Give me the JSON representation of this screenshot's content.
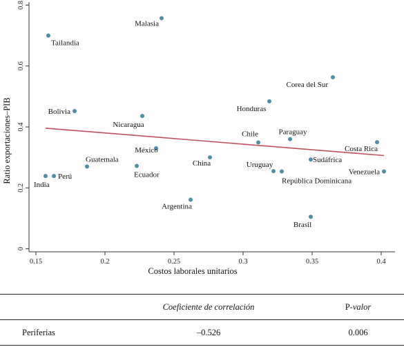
{
  "chart_data": {
    "type": "scatter",
    "xlabel": "Costos laborales unitarios",
    "ylabel": "Ratio exportaciones–PIB",
    "xlim": [
      0.145,
      0.41
    ],
    "ylim": [
      -0.01,
      0.81
    ],
    "xticks": [
      0.15,
      0.2,
      0.25,
      0.3,
      0.35,
      0.4
    ],
    "xtick_labels": [
      "0.15",
      "0.2",
      "0.25",
      "0.3",
      "0.35",
      "0.4"
    ],
    "yticks": [
      0,
      0.2,
      0.4,
      0.6,
      0.8
    ],
    "ytick_labels": [
      "0",
      "0.2",
      "0.4",
      "0.6",
      "0.8"
    ],
    "grid": false,
    "point_color": "#4f8fa6",
    "fit_color": "#c0505a",
    "points": [
      {
        "label": "Malasia",
        "x": 0.241,
        "y": 0.757
      },
      {
        "label": "Tailandia",
        "x": 0.159,
        "y": 0.7
      },
      {
        "label": "Corea del Sur",
        "x": 0.365,
        "y": 0.563
      },
      {
        "label": "Honduras",
        "x": 0.319,
        "y": 0.484
      },
      {
        "label": "Bolivia",
        "x": 0.178,
        "y": 0.452
      },
      {
        "label": "Nicaragua",
        "x": 0.227,
        "y": 0.436
      },
      {
        "label": "Chile",
        "x": 0.311,
        "y": 0.349
      },
      {
        "label": "Paraguay",
        "x": 0.334,
        "y": 0.36
      },
      {
        "label": "Costa Rica",
        "x": 0.397,
        "y": 0.35
      },
      {
        "label": "México",
        "x": 0.237,
        "y": 0.33
      },
      {
        "label": "China",
        "x": 0.276,
        "y": 0.3
      },
      {
        "label": "Sudáfrica",
        "x": 0.349,
        "y": 0.293
      },
      {
        "label": "Guatemala",
        "x": 0.187,
        "y": 0.27
      },
      {
        "label": "Ecuador",
        "x": 0.223,
        "y": 0.272
      },
      {
        "label": "Uruguay",
        "x": 0.322,
        "y": 0.255
      },
      {
        "label": "República Dominicana",
        "x": 0.328,
        "y": 0.254
      },
      {
        "label": "Venezuela",
        "x": 0.402,
        "y": 0.254
      },
      {
        "label": "India",
        "x": 0.157,
        "y": 0.239
      },
      {
        "label": "Perú",
        "x": 0.163,
        "y": 0.239
      },
      {
        "label": "Argentina",
        "x": 0.262,
        "y": 0.161
      },
      {
        "label": "Brasil",
        "x": 0.349,
        "y": 0.105
      }
    ],
    "fit_line": {
      "x": [
        0.157,
        0.402
      ],
      "y": [
        0.396,
        0.306
      ]
    }
  },
  "table": {
    "headers": [
      "",
      "Coeficiente de correlación",
      "P-valor"
    ],
    "rows": [
      {
        "name": "Periferias",
        "correlation": "–0.526",
        "p_value": "0.006"
      }
    ]
  }
}
